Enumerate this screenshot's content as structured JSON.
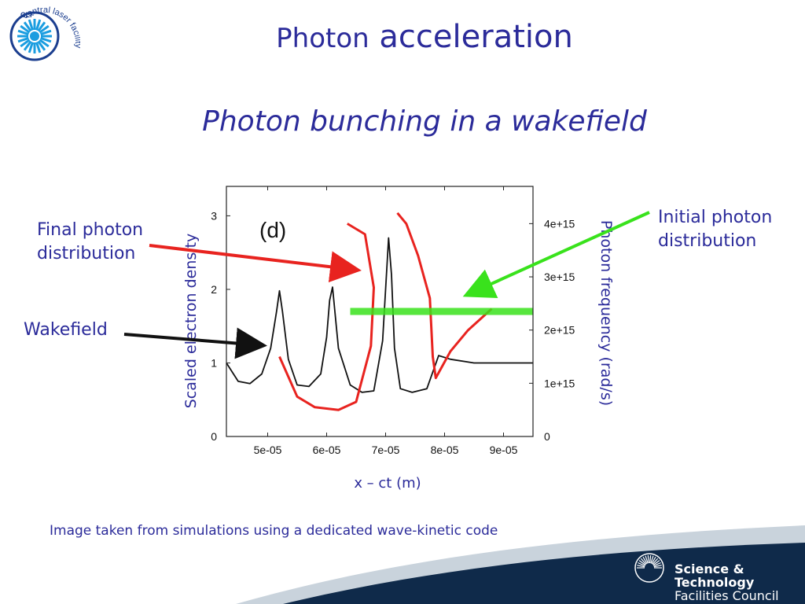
{
  "slide": {
    "title_word1": "Photon",
    "title_word2": "acceleration",
    "subtitle": "Photon bunching in a wakefield",
    "label_final": "Final photon distribution",
    "label_initial": "Initial photon distribution",
    "label_wakefield": "Wakefield",
    "caption": "Image taken from simulations using a dedicated wave-kinetic code",
    "logo_text": "central laser facility",
    "logo_initials": "CLF",
    "footer_line1": "Science & Technology",
    "footer_line2": "Facilities Council"
  },
  "colors": {
    "text": "#2b2b9a",
    "wakefield": "#111111",
    "final": "#e8231f",
    "initial": "#39e21c",
    "footer": "#0f2a4a"
  },
  "chart_data": {
    "type": "line",
    "panel_label": "(d)",
    "xlabel": "x – ct (m)",
    "ylabel_left": "Scaled electron density",
    "ylabel_right": "Photon frequency (rad/s)",
    "xlim": [
      4.3e-05,
      9.5e-05
    ],
    "ylim_left": [
      0,
      3.4
    ],
    "ylim_right": [
      0,
      4700000000000000.0
    ],
    "x_ticks": [
      "5e-05",
      "6e-05",
      "7e-05",
      "8e-05",
      "9e-05"
    ],
    "x_tick_values": [
      5e-05,
      6e-05,
      7e-05,
      8e-05,
      9e-05
    ],
    "y_left_ticks": [
      "0",
      "1",
      "2",
      "3"
    ],
    "y_left_tick_values": [
      0,
      1,
      2,
      3
    ],
    "y_right_ticks": [
      "0",
      "1e+15",
      "2e+15",
      "3e+15",
      "4e+15"
    ],
    "y_right_tick_values": [
      0,
      1000000000000000.0,
      2000000000000000.0,
      3000000000000000.0,
      4000000000000000.0
    ],
    "series": [
      {
        "name": "Wakefield",
        "axis": "left",
        "x": [
          4.3e-05,
          4.5e-05,
          4.7e-05,
          4.9e-05,
          5.05e-05,
          5.15e-05,
          5.2e-05,
          5.25e-05,
          5.35e-05,
          5.5e-05,
          5.7e-05,
          5.9e-05,
          6e-05,
          6.05e-05,
          6.1e-05,
          6.2e-05,
          6.4e-05,
          6.6e-05,
          6.8e-05,
          6.95e-05,
          7.05e-05,
          7.1e-05,
          7.15e-05,
          7.25e-05,
          7.45e-05,
          7.7e-05,
          7.9e-05,
          8.1e-05,
          8.5e-05,
          9.5e-05
        ],
        "y": [
          1.0,
          0.75,
          0.72,
          0.85,
          1.2,
          1.7,
          1.98,
          1.7,
          1.05,
          0.7,
          0.68,
          0.85,
          1.35,
          1.85,
          2.03,
          1.2,
          0.7,
          0.6,
          0.62,
          1.3,
          2.7,
          2.2,
          1.2,
          0.65,
          0.6,
          0.65,
          1.1,
          1.05,
          1.0,
          1.0
        ]
      },
      {
        "name": "Final photon distribution",
        "axis": "right",
        "x": [
          5.2e-05,
          5.5e-05,
          5.8e-05,
          6.2e-05,
          6.5e-05,
          6.75e-05,
          6.8e-05,
          6.65e-05,
          6.35e-05
        ],
        "y": [
          1500000000000000.0,
          750000000000000.0,
          550000000000000.0,
          500000000000000.0,
          650000000000000.0,
          1700000000000000.0,
          2800000000000000.0,
          3800000000000000.0,
          4000000000000000.0
        ]
      },
      {
        "name": "Final photon distribution (upper branch)",
        "axis": "right",
        "x": [
          7.2e-05,
          7.35e-05,
          7.55e-05,
          7.75e-05,
          7.8e-05,
          7.85e-05,
          8.1e-05,
          8.4e-05,
          8.8e-05
        ],
        "y": [
          4200000000000000.0,
          4000000000000000.0,
          3400000000000000.0,
          2600000000000000.0,
          1500000000000000.0,
          1100000000000000.0,
          1600000000000000.0,
          2000000000000000.0,
          2400000000000000.0
        ]
      },
      {
        "name": "Initial photon distribution",
        "axis": "right",
        "x": [
          6.4e-05,
          9.5e-05
        ],
        "y": [
          2350000000000000.0,
          2350000000000000.0
        ]
      }
    ]
  }
}
